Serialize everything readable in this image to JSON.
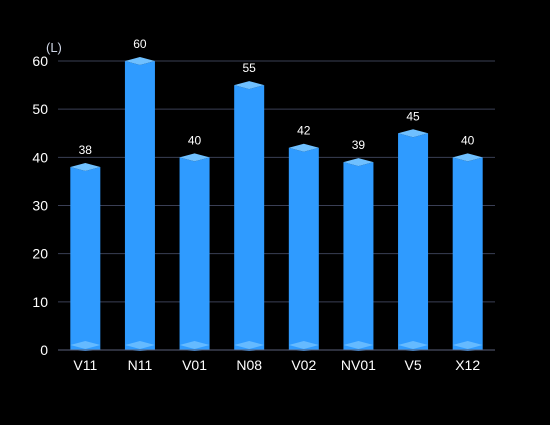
{
  "chart_data": {
    "type": "bar",
    "title": "",
    "xlabel": "",
    "ylabel": "(L)",
    "categories": [
      "V11",
      "N11",
      "V01",
      "N08",
      "V02",
      "NV01",
      "V5",
      "X12"
    ],
    "values": [
      38,
      60,
      40,
      55,
      42,
      39,
      45,
      40
    ],
    "ylim": [
      0,
      60
    ],
    "yticks": [
      0,
      10,
      20,
      30,
      40,
      50,
      60
    ],
    "grid": true,
    "legend": "none",
    "colors": {
      "background": "#000000",
      "bar": "#2f9bff",
      "bar_top": "#6fc0ff",
      "grid": "#3a3f55",
      "axis": "#5a607a",
      "text": "#ffffff"
    }
  }
}
